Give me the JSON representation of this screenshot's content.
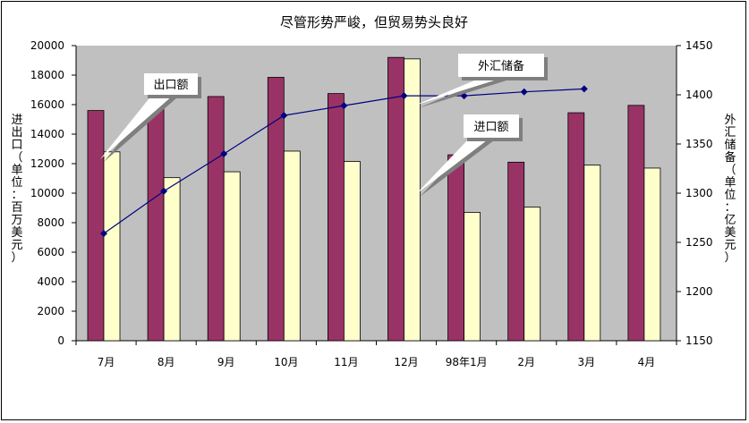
{
  "chart_data": {
    "type": "bar",
    "title": "尽管形势严峻，但贸易势头良好",
    "ylabel_left": "进出口（单位：百万美元）",
    "ylabel_right": "外汇储备（单位：亿美元）",
    "categories": [
      "7月",
      "8月",
      "9月",
      "10月",
      "11月",
      "12月",
      "98年1月",
      "2月",
      "3月",
      "4月"
    ],
    "y_left_range": [
      0,
      20000
    ],
    "y_left_ticks": [
      "0",
      "2000",
      "4000",
      "6000",
      "8000",
      "10000",
      "12000",
      "14000",
      "16000",
      "18000",
      "20000"
    ],
    "y_right_range": [
      1150,
      1450
    ],
    "y_right_ticks": [
      "1150",
      "1200",
      "1250",
      "1300",
      "1350",
      "1400",
      "1450"
    ],
    "series": [
      {
        "name": "出口额",
        "type": "bar",
        "axis": "left",
        "color": "#993366",
        "values": [
          15600,
          16000,
          16550,
          17850,
          16750,
          19200,
          12600,
          12100,
          15450,
          15950
        ]
      },
      {
        "name": "进口额",
        "type": "bar",
        "axis": "left",
        "color": "#FFFFCC",
        "values": [
          12800,
          11050,
          11450,
          12850,
          12150,
          19100,
          8700,
          9050,
          11900,
          11700
        ]
      },
      {
        "name": "外汇储备",
        "type": "line",
        "axis": "right",
        "color": "#000080",
        "values": [
          1259,
          1302,
          1340,
          1379,
          1389,
          1399,
          1399,
          1403,
          1406,
          null
        ]
      }
    ],
    "callouts": [
      "出口额",
      "外汇储备",
      "进口额"
    ],
    "grid": false,
    "plot_background": "#c0c0c0"
  }
}
